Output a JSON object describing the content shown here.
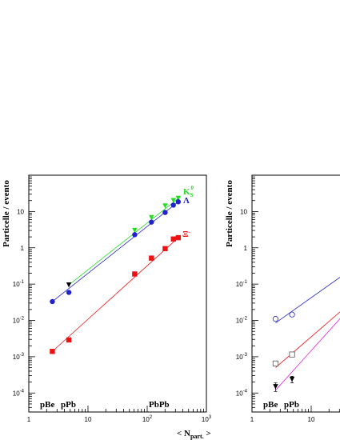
{
  "chart_data": [
    {
      "type": "scatter",
      "panel": "left",
      "title": "",
      "ylabel": "Particelle / evento",
      "xlabel": "< N",
      "xlabel_sub": "part.",
      "xlabel_close": " >",
      "x_scale": "log",
      "y_scale": "log",
      "xlim": [
        1,
        1000
      ],
      "ylim": [
        3e-05,
        100
      ],
      "x_ticks": [
        {
          "v": 1,
          "b": "1",
          "e": ""
        },
        {
          "v": 10,
          "b": "10",
          "e": ""
        },
        {
          "v": 100,
          "b": "10",
          "e": "2"
        },
        {
          "v": 1000,
          "b": "10",
          "e": "3"
        }
      ],
      "y_ticks": [
        {
          "v": 0.0001,
          "b": "10",
          "e": "-4"
        },
        {
          "v": 0.001,
          "b": "10",
          "e": "-3"
        },
        {
          "v": 0.01,
          "b": "10",
          "e": "-2"
        },
        {
          "v": 0.1,
          "b": "10",
          "e": "-1"
        },
        {
          "v": 1,
          "b": "1",
          "e": ""
        },
        {
          "v": 10,
          "b": "10",
          "e": ""
        }
      ],
      "system_labels": [
        "pBe",
        "pPb",
        "PbPb"
      ],
      "series": [
        {
          "name": "K",
          "sup": "0",
          "sub": "S",
          "color": "#22dd22",
          "marker": "triangle-down",
          "x": [
            61.5,
            118,
            201,
            277,
            335
          ],
          "y": [
            3.0,
            6.8,
            14.2,
            20.0,
            23.0
          ]
        },
        {
          "name": "Λ",
          "sup": "",
          "sub": "",
          "color": "#2222cc",
          "marker": "circle",
          "x": [
            2.5,
            4.75,
            61.5,
            118,
            201,
            277,
            335
          ],
          "y": [
            0.033,
            0.059,
            2.3,
            5.1,
            9.4,
            15.0,
            18.5
          ]
        },
        {
          "name": "Ξ",
          "sup": "-",
          "sub": "",
          "color": "#ee1111",
          "marker": "square",
          "x": [
            2.5,
            4.75,
            61.5,
            118,
            201,
            277,
            335
          ],
          "y": [
            0.0014,
            0.0029,
            0.19,
            0.52,
            0.95,
            1.75,
            1.9
          ]
        },
        {
          "name": "",
          "color": "#000000",
          "marker": "triangle-down",
          "x": [
            4.75
          ],
          "y": [
            0.095
          ]
        }
      ]
    },
    {
      "type": "scatter",
      "panel": "right",
      "title": "",
      "ylabel": "Particelle / evento",
      "x_scale": "log",
      "y_scale": "log",
      "xlim": [
        1,
        1000
      ],
      "ylim": [
        3e-05,
        100
      ],
      "x_ticks": [
        {
          "v": 1,
          "b": "1",
          "e": ""
        },
        {
          "v": 10,
          "b": "10",
          "e": ""
        }
      ],
      "y_ticks": [
        {
          "v": 0.0001,
          "b": "10",
          "e": "-4"
        },
        {
          "v": 0.001,
          "b": "10",
          "e": "-3"
        },
        {
          "v": 0.01,
          "b": "10",
          "e": "-2"
        },
        {
          "v": 0.1,
          "b": "10",
          "e": "-1"
        },
        {
          "v": 1,
          "b": "1",
          "e": ""
        },
        {
          "v": 10,
          "b": "10",
          "e": ""
        }
      ],
      "system_labels": [
        "pBe",
        "pPb"
      ],
      "series": [
        {
          "name": "",
          "color": "#2222cc",
          "marker": "circle-open",
          "x": [
            2.5,
            4.75
          ],
          "y": [
            0.011,
            0.0145
          ],
          "err": [
            0,
            0
          ]
        },
        {
          "name": "",
          "color": "#ee1111",
          "marker": "square-open",
          "x": [
            2.5,
            4.75
          ],
          "y": [
            0.00065,
            0.00115
          ],
          "err": [
            8e-05,
            0.0001
          ]
        },
        {
          "name": "",
          "color": "#000000",
          "marker": "triangle-down",
          "x": [
            2.5,
            4.75
          ],
          "y": [
            0.00015,
            0.00024
          ],
          "err": [
            4e-05,
            5e-05
          ]
        }
      ],
      "fit_lines": [
        {
          "color": "#2222cc",
          "x": [
            2.5,
            40
          ],
          "y": [
            0.0085,
            0.21
          ]
        },
        {
          "color": "#ee1111",
          "x": [
            2.5,
            40
          ],
          "y": [
            0.0005,
            0.025
          ]
        },
        {
          "color": "#dd22dd",
          "x": [
            2.5,
            40
          ],
          "y": [
            0.00012,
            0.018
          ]
        }
      ]
    }
  ],
  "left_fits": [
    {
      "color": "#22dd22",
      "x": [
        4.75,
        335
      ],
      "y": [
        0.095,
        23.0
      ]
    },
    {
      "color": "#2222cc",
      "x": [
        2.5,
        335
      ],
      "y": [
        0.033,
        18.5
      ]
    },
    {
      "color": "#ee1111",
      "x": [
        2.5,
        335
      ],
      "y": [
        0.0014,
        1.9
      ]
    }
  ]
}
